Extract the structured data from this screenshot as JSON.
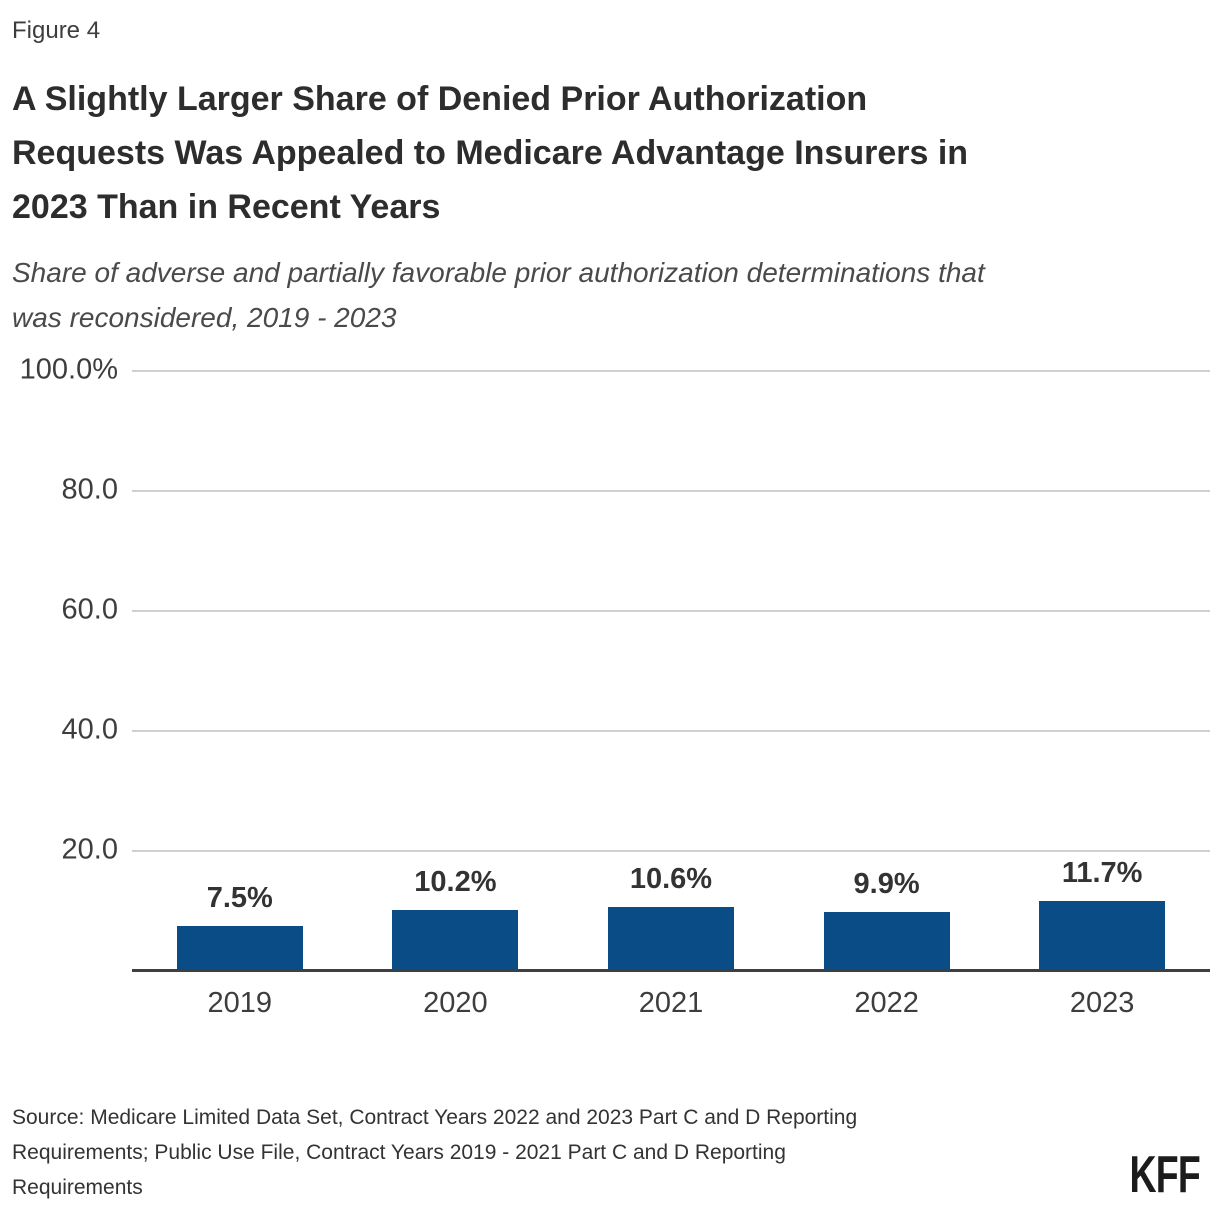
{
  "header": {
    "figure_label": "Figure 4",
    "title_lines": [
      "A Slightly Larger Share of Denied Prior Authorization",
      "Requests Was Appealed to Medicare Advantage Insurers in",
      "2023 Than in Recent Years"
    ],
    "subtitle_lines": [
      "Share of adverse and partially favorable prior authorization determinations that",
      "was reconsidered, 2019 - 2023"
    ]
  },
  "chart_data": {
    "type": "bar",
    "title": "A Slightly Larger Share of Denied Prior Authorization Requests Was Appealed to Medicare Advantage Insurers in 2023 Than in Recent Years",
    "subtitle": "Share of adverse and partially favorable prior authorization determinations that was reconsidered, 2019 - 2023",
    "categories": [
      "2019",
      "2020",
      "2021",
      "2022",
      "2023"
    ],
    "values": [
      7.5,
      10.2,
      10.6,
      9.9,
      11.7
    ],
    "value_labels": [
      "7.5%",
      "10.2%",
      "10.6%",
      "9.9%",
      "11.7%"
    ],
    "xlabel": "",
    "ylabel": "",
    "ylim": [
      0,
      100
    ],
    "y_ticks": [
      {
        "value": 100,
        "label": "100.0%"
      },
      {
        "value": 80,
        "label": "80.0"
      },
      {
        "value": 60,
        "label": "60.0"
      },
      {
        "value": 40,
        "label": "40.0"
      },
      {
        "value": 20,
        "label": "20.0"
      }
    ],
    "grid": true,
    "legend": "none",
    "bar_color": "#0a4c85"
  },
  "footer": {
    "source_lines": [
      "Source: Medicare Limited Data Set, Contract Years 2022 and 2023 Part C and D Reporting",
      "Requirements; Public Use File, Contract Years 2019 - 2021 Part C and D Reporting",
      "Requirements"
    ],
    "logo_text": "KFF"
  },
  "theme": {
    "bar_color": "#0a4c85",
    "grid_color": "#d0d0d0",
    "axis_color": "#3f3f3f",
    "logo_color": "#1c1c1c"
  }
}
